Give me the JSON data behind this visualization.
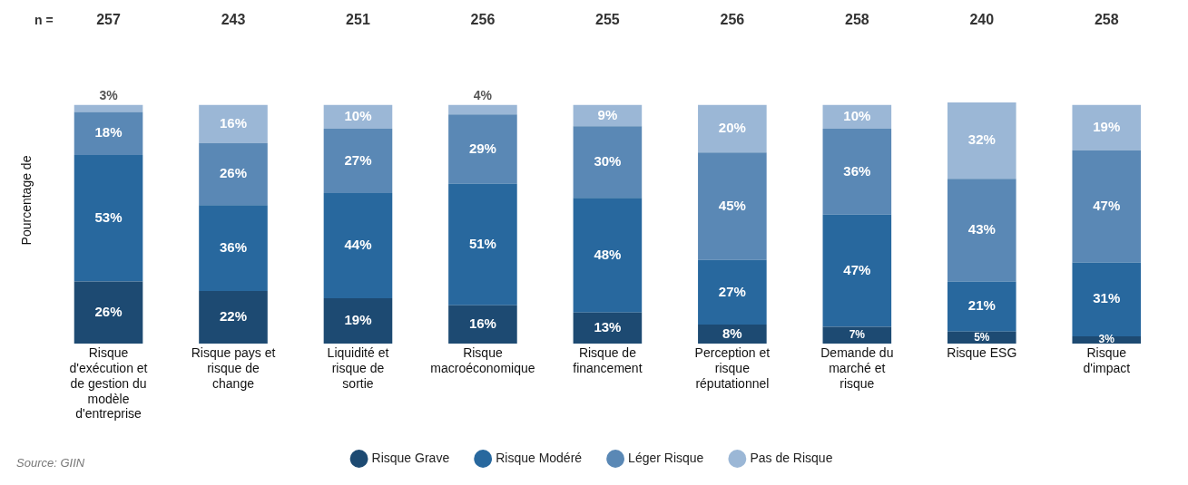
{
  "chart_data": {
    "type": "bar",
    "stacked": true,
    "ylabel": "Pourcentage de",
    "categories": [
      "Risque d'exécution et de gestion du modèle d'entreprise",
      "Risque pays et risque de change",
      "Liquidité et risque de sortie",
      "Risque macroéconomique",
      "Risque de financement",
      "Perception et risque réputationnel",
      "Demande du marché et risque",
      "Risque ESG",
      "Risque d'impact"
    ],
    "series": [
      {
        "name": "Risque Grave",
        "color": "#1d4a72",
        "values": [
          26,
          22,
          19,
          16,
          13,
          8,
          7,
          5,
          3
        ],
        "value_labels": [
          "26%",
          "22%",
          "19%",
          "16%",
          "13%",
          "8%",
          "7%",
          "5%",
          "3%"
        ]
      },
      {
        "name": "Risque Modéré",
        "color": "#28689e",
        "values": [
          53,
          36,
          44,
          51,
          48,
          27,
          47,
          21,
          31
        ],
        "value_labels": [
          "53%",
          "36%",
          "44%",
          "51%",
          "48%",
          "27%",
          "47%",
          "21%",
          "31%"
        ]
      },
      {
        "name": "Léger Risque",
        "color": "#5a88b5",
        "values": [
          18,
          26,
          27,
          29,
          30,
          45,
          36,
          43,
          47
        ],
        "value_labels": [
          "18%",
          "26%",
          "27%",
          "29%",
          "30%",
          "45%",
          "36%",
          "43%",
          "47%"
        ]
      },
      {
        "name": "Pas de Risque",
        "color": "#9bb7d6",
        "values": [
          3,
          16,
          10,
          4,
          9,
          20,
          10,
          32,
          19
        ],
        "value_labels": [
          "3%",
          "16%",
          "10%",
          "4%",
          "9%",
          "20%",
          "10%",
          "32%",
          "19%"
        ]
      }
    ],
    "legend": "bottom",
    "grid": false,
    "annotations": [
      "n =",
      "257",
      "243",
      "251",
      "256",
      "255",
      "256",
      "258",
      "240",
      "258",
      "Source: GIIN"
    ]
  }
}
